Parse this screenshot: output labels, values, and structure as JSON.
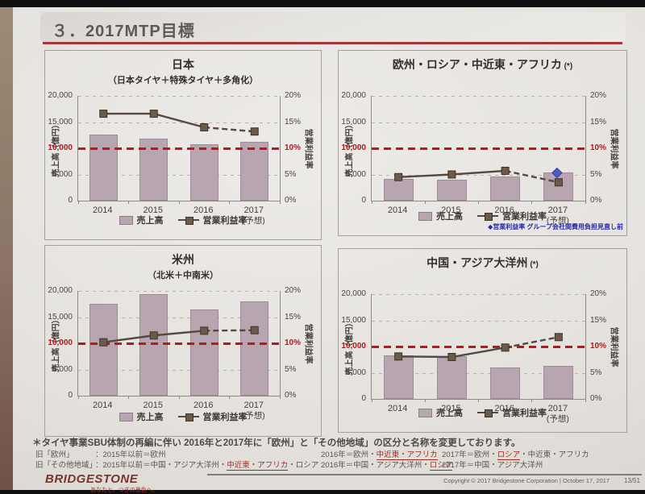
{
  "colors": {
    "accent_red": "#bf1418",
    "bar_fill": "#b7a5b0",
    "line_brown": "#564940",
    "marker_brown": "#6d5b49",
    "diamond_blue": "#4d5ec1",
    "note_blue": "#2626ae",
    "underline_red": "#9c2b24",
    "title_underline": "#a8333a"
  },
  "header": {
    "title": "３．2017MTP目標"
  },
  "chart_data": [
    {
      "id": "japan",
      "type": "bar+line",
      "title": "日本",
      "subtitle": "（日本タイヤ＋特殊タイヤ＋多角化）",
      "star": false,
      "categories": [
        "2014",
        "2015",
        "2016",
        "2017"
      ],
      "forecast_label": "(予想)",
      "bar_series": {
        "name": "売上高",
        "values": [
          12600,
          11800,
          10700,
          11300
        ]
      },
      "line_series": {
        "name": "営業利益率",
        "values": [
          16.6,
          16.6,
          14.0,
          13.2
        ],
        "unit": "%",
        "dashed_from_index": 2
      },
      "left_axis": {
        "label": "売上高（億円）",
        "min": 0,
        "max": 20000,
        "step": 5000
      },
      "right_axis": {
        "label": "営業利益率",
        "min": 0,
        "max": 20,
        "step": 5,
        "unit": "%"
      },
      "reference_line": {
        "value": 10000,
        "left_label": "10,000",
        "right_label": "10%"
      },
      "grid": true,
      "legend_position": "bottom"
    },
    {
      "id": "emea",
      "type": "bar+line",
      "title": "欧州・ロシア・中近東・アフリカ",
      "star": true,
      "categories": [
        "2014",
        "2015",
        "2016",
        "2017"
      ],
      "forecast_label": "(予想)",
      "bar_series": {
        "name": "売上高",
        "values": [
          4200,
          4000,
          4600,
          5400
        ]
      },
      "line_series": {
        "name": "営業利益率",
        "values": [
          4.5,
          5.0,
          5.7,
          3.5
        ],
        "unit": "%",
        "dashed_from_index": 2
      },
      "extra_marker": {
        "shape": "diamond",
        "value": 5.3
      },
      "note": "◆営業利益率 グループ会社間費用負担見直し前",
      "left_axis": {
        "label": "売上高（億円）",
        "min": 0,
        "max": 20000,
        "step": 5000
      },
      "right_axis": {
        "label": "営業利益率",
        "min": 0,
        "max": 20,
        "step": 5,
        "unit": "%"
      },
      "reference_line": {
        "value": 10000,
        "left_label": "10,000",
        "right_label": "10%"
      },
      "grid": true,
      "legend_position": "bottom"
    },
    {
      "id": "americas",
      "type": "bar+line",
      "title": "米州",
      "subtitle": "（北米＋中南米）",
      "star": false,
      "categories": [
        "2014",
        "2015",
        "2016",
        "2017"
      ],
      "forecast_label": "(予想)",
      "bar_series": {
        "name": "売上高",
        "values": [
          17600,
          19400,
          16400,
          18000
        ]
      },
      "line_series": {
        "name": "営業利益率",
        "values": [
          10.2,
          11.5,
          12.4,
          12.5
        ],
        "unit": "%",
        "dashed_from_index": 2
      },
      "left_axis": {
        "label": "売上高（億円）",
        "min": 0,
        "max": 20000,
        "step": 5000
      },
      "right_axis": {
        "label": "営業利益率",
        "min": 0,
        "max": 20,
        "step": 5,
        "unit": "%"
      },
      "reference_line": {
        "value": 10000,
        "left_label": "10,000",
        "right_label": "10%"
      },
      "grid": true,
      "legend_position": "bottom"
    },
    {
      "id": "china-ap",
      "type": "bar+line",
      "title": "中国・アジア大洋州",
      "star": true,
      "categories": [
        "2014",
        "2015",
        "2016",
        "2017"
      ],
      "forecast_label": "(予想)",
      "bar_series": {
        "name": "売上高",
        "values": [
          8300,
          8100,
          6000,
          6300
        ]
      },
      "line_series": {
        "name": "営業利益率",
        "values": [
          8.1,
          8.0,
          9.8,
          11.8
        ],
        "unit": "%",
        "dashed_from_index": 2
      },
      "left_axis": {
        "label": "売上高（億円）",
        "min": 0,
        "max": 20000,
        "step": 5000
      },
      "right_axis": {
        "label": "営業利益率",
        "min": 0,
        "max": 20,
        "step": 5,
        "unit": "%"
      },
      "reference_line": {
        "value": 10000,
        "left_label": "10,000",
        "right_label": "10%"
      },
      "grid": true,
      "legend_position": "bottom"
    }
  ],
  "footnote": {
    "asterisk_line": "＊タイヤ事業SBU体制の再編に伴い 2016年と2017年に「欧州」と「その他地域」の区分と名称を変更しております。",
    "rows": [
      {
        "label": "旧「欧州」",
        "columns": [
          [
            {
              "t": "：2015年以前＝欧州"
            }
          ],
          [
            {
              "t": "2016年＝欧州・"
            },
            {
              "t": "中近東・アフリカ",
              "u": true
            }
          ],
          [
            {
              "t": "2017年＝欧州・"
            },
            {
              "t": "ロシア",
              "u": true
            },
            {
              "t": "・中近東・アフリカ"
            }
          ]
        ]
      },
      {
        "label": "旧「その他地域」",
        "columns": [
          [
            {
              "t": "：2015年以前＝中国・アジア大洋州・"
            },
            {
              "t": "中近東・アフリカ",
              "u": true
            },
            {
              "t": "・ロシア"
            }
          ],
          [
            {
              "t": "2016年＝中国・アジア大洋州・"
            },
            {
              "t": "ロシア",
              "u": true
            }
          ],
          [
            {
              "t": "2017年＝中国・アジア大洋州"
            }
          ]
        ]
      }
    ]
  },
  "brand": {
    "logo": "BRIDGESTONE",
    "tagline": "あなたと、つぎの景色へ。",
    "copyright": "Copyright © 2017 Bridgestone Corporation | October 17, 2017",
    "page": "13/51"
  }
}
